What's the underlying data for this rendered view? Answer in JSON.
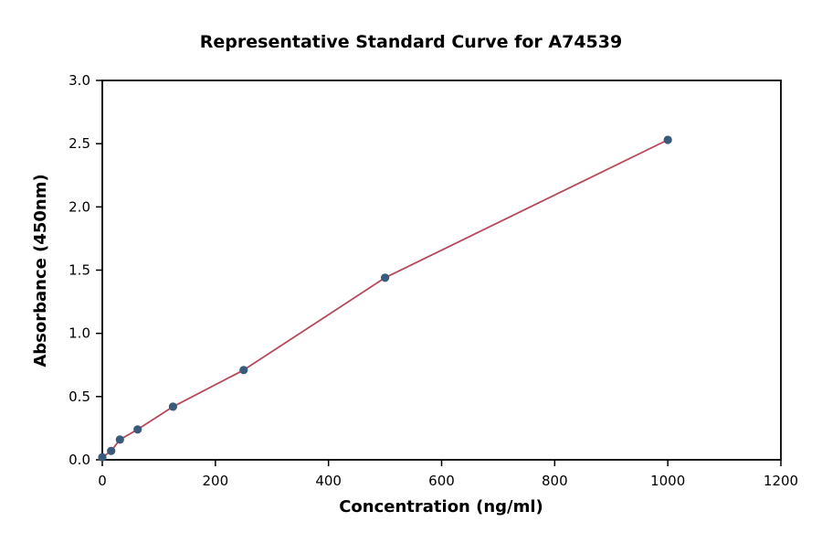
{
  "chart_data": {
    "type": "scatter",
    "title": "Representative Standard Curve for A74539",
    "xlabel": "Concentration (ng/ml)",
    "ylabel": "Absorbance (450nm)",
    "xlim": [
      0,
      1200
    ],
    "ylim": [
      0,
      3.0
    ],
    "x_ticks": [
      0,
      200,
      400,
      600,
      800,
      1000,
      1200
    ],
    "y_ticks": [
      0.0,
      0.5,
      1.0,
      1.5,
      2.0,
      2.5,
      3.0
    ],
    "grid": false,
    "legend_position": "none",
    "point_color": "#3a5a7c",
    "line_color": "#b5495b",
    "frame_color": "#000000",
    "series": [
      {
        "name": "standards",
        "type": "scatter",
        "x": [
          0,
          15.6,
          31.2,
          62.5,
          125,
          250,
          500,
          1000
        ],
        "y": [
          0.02,
          0.07,
          0.16,
          0.24,
          0.42,
          0.71,
          1.44,
          2.53
        ]
      },
      {
        "name": "fit-line",
        "type": "line",
        "x": [
          0,
          15.6,
          31.2,
          62.5,
          125,
          250,
          500,
          1000
        ],
        "y": [
          0.02,
          0.07,
          0.16,
          0.24,
          0.42,
          0.71,
          1.44,
          2.53
        ]
      }
    ]
  }
}
